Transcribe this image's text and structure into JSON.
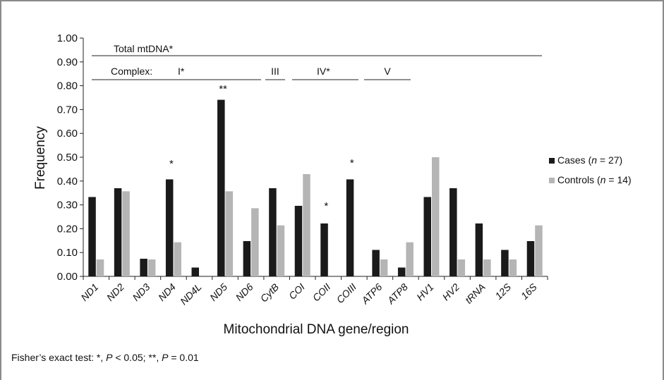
{
  "chart_data": {
    "type": "bar",
    "ylabel": "Frequency",
    "xlabel": "Mitochondrial DNA gene/region",
    "ylim": [
      0,
      1.0
    ],
    "yticks": [
      "0.00",
      "0.10",
      "0.20",
      "0.30",
      "0.40",
      "0.50",
      "0.60",
      "0.70",
      "0.80",
      "0.90",
      "1.00"
    ],
    "grid": false,
    "legend_position": "right",
    "categories": [
      "ND1",
      "ND2",
      "ND3",
      "ND4",
      "ND4L",
      "ND5",
      "ND6",
      "CytB",
      "COI",
      "COII",
      "COIII",
      "ATP6",
      "ATP8",
      "HV1",
      "HV2",
      "tRNA",
      "12S",
      "16S"
    ],
    "series": [
      {
        "name": "Cases",
        "legend_suffix": "(n = 27)",
        "color": "#1a1a1a",
        "values": [
          0.333,
          0.37,
          0.074,
          0.407,
          0.037,
          0.741,
          0.148,
          0.37,
          0.296,
          0.222,
          0.407,
          0.111,
          0.037,
          0.333,
          0.37,
          0.222,
          0.111,
          0.148
        ]
      },
      {
        "name": "Controls",
        "legend_suffix": "(n = 14)",
        "color": "#b5b5b5",
        "values": [
          0.071,
          0.357,
          0.071,
          0.143,
          0.0,
          0.357,
          0.286,
          0.214,
          0.429,
          0.0,
          0.0,
          0.071,
          0.143,
          0.5,
          0.071,
          0.071,
          0.071,
          0.214
        ]
      }
    ],
    "significance": [
      {
        "category": "ND4",
        "mark": "*"
      },
      {
        "category": "ND5",
        "mark": "**"
      },
      {
        "category": "COII",
        "mark": "*"
      },
      {
        "category": "COIII",
        "mark": "*"
      }
    ],
    "annotations": {
      "total": "Total mtDNA*",
      "complex_label": "Complex:",
      "complex_I": "I*",
      "complex_III": "III",
      "complex_IV": "IV*",
      "complex_V": "V"
    }
  },
  "footnote": {
    "prefix": "Fisher’s exact test: *, ",
    "p1": "P",
    "mid": " < 0.05; **, ",
    "p2": "P",
    "suffix": " = 0.01"
  }
}
